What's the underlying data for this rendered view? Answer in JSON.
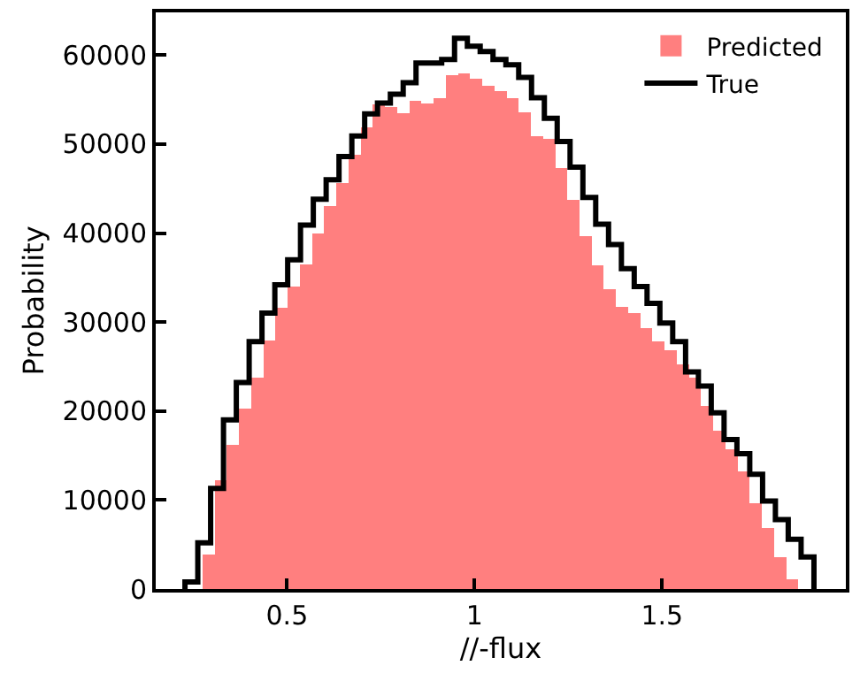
{
  "chart_data": {
    "type": "histogram",
    "xlabel": "//-flux",
    "ylabel": "Probability",
    "xlim": [
      0.15,
      1.99
    ],
    "ylim": [
      0,
      64800
    ],
    "xticks": [
      0.5,
      1.0,
      1.5
    ],
    "yticks": [
      0,
      10000,
      20000,
      30000,
      40000,
      50000,
      60000
    ],
    "grid": false,
    "legend": "top right",
    "marker": "none",
    "bins": [
      0.275,
      0.3074,
      0.3398,
      0.3722,
      0.4047,
      0.4371,
      0.4695,
      0.5019,
      0.5343,
      0.5667,
      0.5992,
      0.6316,
      0.664,
      0.6964,
      0.7288,
      0.7612,
      0.7937,
      0.8261,
      0.8585,
      0.8909,
      0.9233,
      0.9557,
      0.9882,
      1.0206,
      1.053,
      1.0854,
      1.1178,
      1.1502,
      1.1827,
      1.2151,
      1.2475,
      1.2799,
      1.3123,
      1.3447,
      1.3772,
      1.4096,
      1.442,
      1.4744,
      1.5068,
      1.5392,
      1.5717,
      1.6041,
      1.6365,
      1.6689,
      1.7013,
      1.7337,
      1.7662,
      1.7986,
      1.831,
      1.863
    ],
    "series": [
      {
        "name": "Predicted",
        "color": "#ff7f7f",
        "values": [
          3900,
          12200,
          16200,
          20300,
          23800,
          27900,
          31600,
          34000,
          36500,
          40000,
          43000,
          45600,
          48800,
          51900,
          54500,
          54200,
          53500,
          54900,
          54600,
          55200,
          57700,
          57900,
          57300,
          56600,
          56000,
          55200,
          53600,
          50900,
          50600,
          47300,
          43700,
          39700,
          36400,
          33700,
          31700,
          31000,
          29300,
          27800,
          26800,
          25200,
          23800,
          20600,
          17800,
          15700,
          13200,
          9600,
          6900,
          3600,
          1100
        ]
      },
      {
        "name": "True",
        "type": "step",
        "color": "#000000",
        "x": [
          0.228,
          0.228,
          0.2622,
          0.2964,
          0.3307,
          0.3649,
          0.3991,
          0.4333,
          0.4676,
          0.5018,
          0.536,
          0.5702,
          0.6044,
          0.6387,
          0.6729,
          0.7071,
          0.7413,
          0.7756,
          0.8098,
          0.844,
          0.8782,
          0.9124,
          0.9467,
          0.9809,
          1.0151,
          1.0493,
          1.0836,
          1.1178,
          1.152,
          1.1862,
          1.2204,
          1.2547,
          1.2889,
          1.3231,
          1.3573,
          1.3916,
          1.4258,
          1.46,
          1.4942,
          1.5284,
          1.5627,
          1.5969,
          1.6311,
          1.6653,
          1.6996,
          1.7338,
          1.768,
          1.8022,
          1.8364,
          1.8707,
          1.905
        ],
        "values": [
          0,
          800,
          5200,
          11300,
          19000,
          23200,
          27800,
          31000,
          34200,
          37000,
          40900,
          43800,
          46000,
          48600,
          50900,
          53400,
          54600,
          55600,
          56900,
          59100,
          59100,
          59500,
          61900,
          61000,
          60400,
          59500,
          58900,
          57500,
          55200,
          52900,
          50300,
          47400,
          44000,
          41000,
          38700,
          36000,
          34000,
          32100,
          29900,
          27800,
          24400,
          22800,
          19800,
          16800,
          15200,
          12900,
          9900,
          7800,
          5600,
          3600,
          0
        ]
      }
    ]
  }
}
